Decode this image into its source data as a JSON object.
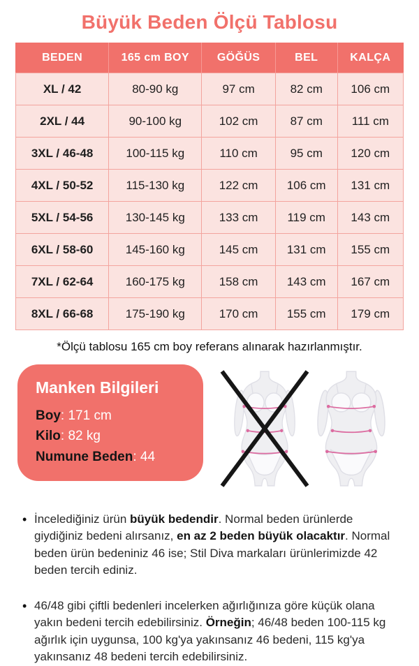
{
  "title": "Büyük Beden Ölçü Tablosu",
  "table": {
    "headers": [
      "BEDEN",
      "165 cm BOY",
      "GÖĞÜS",
      "BEL",
      "KALÇA"
    ],
    "rows": [
      [
        "XL / 42",
        "80-90 kg",
        "97 cm",
        "82 cm",
        "106 cm"
      ],
      [
        "2XL / 44",
        "90-100 kg",
        "102 cm",
        "87 cm",
        "111 cm"
      ],
      [
        "3XL / 46-48",
        "100-115 kg",
        "110 cm",
        "95 cm",
        "120 cm"
      ],
      [
        "4XL / 50-52",
        "115-130 kg",
        "122 cm",
        "106 cm",
        "131 cm"
      ],
      [
        "5XL / 54-56",
        "130-145 kg",
        "133 cm",
        "119 cm",
        "143 cm"
      ],
      [
        "6XL / 58-60",
        "145-160 kg",
        "145 cm",
        "131 cm",
        "155 cm"
      ],
      [
        "7XL / 62-64",
        "160-175 kg",
        "158 cm",
        "143 cm",
        "167 cm"
      ],
      [
        "8XL / 66-68",
        "175-190 kg",
        "170 cm",
        "155 cm",
        "179 cm"
      ]
    ]
  },
  "footnote": "*Ölçü tablosu 165 cm boy referans alınarak hazırlanmıştır.",
  "model_info": {
    "title": "Manken Bilgileri",
    "fields": [
      {
        "label": "Boy",
        "value": "171 cm"
      },
      {
        "label": "Kilo",
        "value": "82 kg"
      },
      {
        "label": "Numune Beden",
        "value": "44"
      }
    ]
  },
  "figures": {
    "left": "crossed-out-slim-body-figure",
    "right": "plus-size-body-figure-with-measurement-lines"
  },
  "bullets": [
    [
      {
        "text": "İncelediğiniz ürün ",
        "bold": false
      },
      {
        "text": "büyük bedendir",
        "bold": true
      },
      {
        "text": ". Normal beden ürünlerde giydiğiniz bedeni alırsanız, ",
        "bold": false
      },
      {
        "text": "en az 2 beden büyük olacaktır",
        "bold": true
      },
      {
        "text": ". Normal beden ürün bedeniniz 46 ise; Stil Diva markaları ürünlerimizde 42 beden tercih ediniz.",
        "bold": false
      }
    ],
    [
      {
        "text": "46/48 gibi çiftli bedenleri incelerken ağırlığınıza göre küçük olana yakın bedeni tercih edebilirsiniz. ",
        "bold": false
      },
      {
        "text": "Örneğin",
        "bold": true
      },
      {
        "text": "; 46/48 beden 100-115 kg ağırlık için uygunsa, 100 kg'ya yakınsanız 46 bedeni, 115 kg'ya yakınsanız 48 bedeni tercih edebilirsiniz.",
        "bold": false
      }
    ]
  ],
  "colors": {
    "accent": "#F1716B",
    "row_bg": "#FBE3E0",
    "divider": "#F3A49E",
    "text": "#1F1F1F",
    "measure_line": "#DC6BA0",
    "figure_fill": "#EFEFF2"
  }
}
